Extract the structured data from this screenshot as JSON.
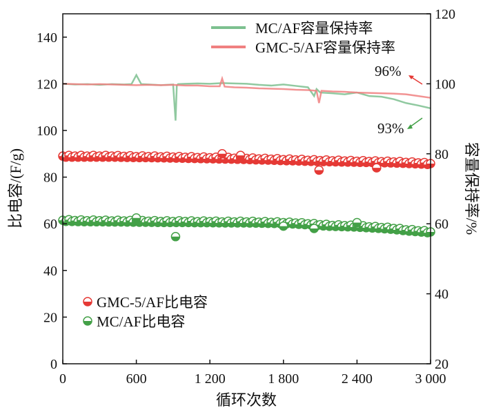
{
  "chart_data": {
    "type": "line+scatter",
    "xlabel": "循环次数",
    "ylabel_left": "比电容/(F/g)",
    "ylabel_right": "容量保持率/%",
    "xlim": [
      0,
      3000
    ],
    "ylim_left": [
      0,
      150
    ],
    "ylim_right": [
      20,
      120
    ],
    "xticks": [
      0,
      600,
      1200,
      1800,
      2400,
      3000
    ],
    "xtick_labels": [
      "0",
      "600",
      "1 200",
      "1 800",
      "2 400",
      "3 000"
    ],
    "yticks_left": [
      0,
      20,
      40,
      60,
      80,
      100,
      120,
      140
    ],
    "yticks_right": [
      20,
      40,
      60,
      80,
      100,
      120
    ],
    "grid": false,
    "capacitance_series": [
      {
        "name": "GMC-5/AF比电容",
        "color": "#e53935",
        "axis": "left",
        "x": [
          0,
          100,
          200,
          300,
          400,
          500,
          600,
          700,
          800,
          900,
          1000,
          1100,
          1200,
          1300,
          1400,
          1500,
          1600,
          1700,
          1800,
          1900,
          2000,
          2100,
          2200,
          2300,
          2400,
          2500,
          2600,
          2700,
          2800,
          2900,
          3000
        ],
        "y": [
          89,
          89,
          89,
          89,
          89,
          88.9,
          88.8,
          88.8,
          88.7,
          88.6,
          88.5,
          88.4,
          88.3,
          88.2,
          88.1,
          88,
          87.8,
          87.7,
          87.5,
          87.4,
          87.2,
          87.1,
          87,
          86.9,
          86.8,
          86.7,
          86.6,
          86.5,
          86.3,
          86.1,
          85.8
        ],
        "outliers": [
          [
            1300,
            90
          ],
          [
            1450,
            89.3
          ],
          [
            2090,
            83
          ],
          [
            2560,
            84
          ]
        ]
      },
      {
        "name": "MC/AF比电容",
        "color": "#43a047",
        "axis": "left",
        "x": [
          0,
          100,
          200,
          300,
          400,
          500,
          600,
          700,
          800,
          900,
          1000,
          1100,
          1200,
          1300,
          1400,
          1500,
          1600,
          1700,
          1800,
          1900,
          2000,
          2100,
          2200,
          2300,
          2400,
          2500,
          2600,
          2700,
          2800,
          2900,
          3000
        ],
        "y": [
          61.5,
          61.4,
          61.3,
          61.3,
          61.2,
          61.2,
          61.1,
          61.1,
          61,
          61,
          61,
          60.9,
          60.9,
          60.8,
          60.8,
          60.8,
          60.7,
          60.6,
          60.5,
          60.3,
          60,
          59.6,
          59.3,
          59.2,
          59,
          58.7,
          58.4,
          58,
          57.4,
          57,
          56.5
        ],
        "outliers": [
          [
            600,
            62.5
          ],
          [
            920,
            54.5
          ],
          [
            1800,
            59
          ],
          [
            2050,
            58
          ],
          [
            2400,
            60.5
          ]
        ]
      }
    ],
    "retention_series": [
      {
        "name": "MC/AF容量保持率",
        "color": "#7cc08f",
        "axis": "right",
        "x": [
          0,
          100,
          200,
          300,
          400,
          500,
          560,
          600,
          640,
          700,
          800,
          900,
          920,
          930,
          940,
          1000,
          1100,
          1200,
          1300,
          1400,
          1500,
          1600,
          1700,
          1800,
          1900,
          2000,
          2050,
          2070,
          2100,
          2200,
          2300,
          2400,
          2500,
          2600,
          2700,
          2800,
          2900,
          3000
        ],
        "y": [
          100,
          99.8,
          99.9,
          99.7,
          99.9,
          99.8,
          99.9,
          102.5,
          99.9,
          99.8,
          99.6,
          99.8,
          89.5,
          99.5,
          99.9,
          100,
          100.1,
          100,
          100.2,
          100.1,
          100,
          99.7,
          99.5,
          99.8,
          99.4,
          99,
          96.5,
          98.5,
          97.5,
          97.3,
          97,
          97.5,
          96.5,
          96.3,
          95.6,
          94.5,
          93.8,
          93
        ]
      },
      {
        "name": "GMC-5/AF容量保持率",
        "color": "#f08080",
        "axis": "right",
        "x": [
          0,
          100,
          200,
          300,
          400,
          500,
          600,
          700,
          800,
          900,
          1000,
          1100,
          1200,
          1280,
          1300,
          1320,
          1400,
          1500,
          1600,
          1700,
          1800,
          1900,
          2000,
          2070,
          2090,
          2110,
          2200,
          2300,
          2400,
          2500,
          2600,
          2700,
          2800,
          2900,
          3000
        ],
        "y": [
          100,
          99.9,
          99.8,
          99.9,
          99.8,
          99.7,
          99.6,
          99.7,
          99.6,
          99.7,
          99.5,
          99.5,
          99.3,
          99.3,
          101.5,
          99.2,
          99,
          98.9,
          98.7,
          98.6,
          98.5,
          98.3,
          98.2,
          98,
          94.5,
          98,
          97.8,
          97.7,
          97.5,
          97.4,
          97.3,
          97.2,
          97,
          96.5,
          96
        ]
      }
    ],
    "legend_top": [
      "MC/AF容量保持率",
      "GMC-5/AF容量保持率"
    ],
    "legend_bottom": [
      "GMC-5/AF比电容",
      "MC/AF比电容"
    ],
    "annotations": [
      {
        "text": "96%",
        "color": "#e53935"
      },
      {
        "text": "93%",
        "color": "#43a047"
      }
    ]
  }
}
